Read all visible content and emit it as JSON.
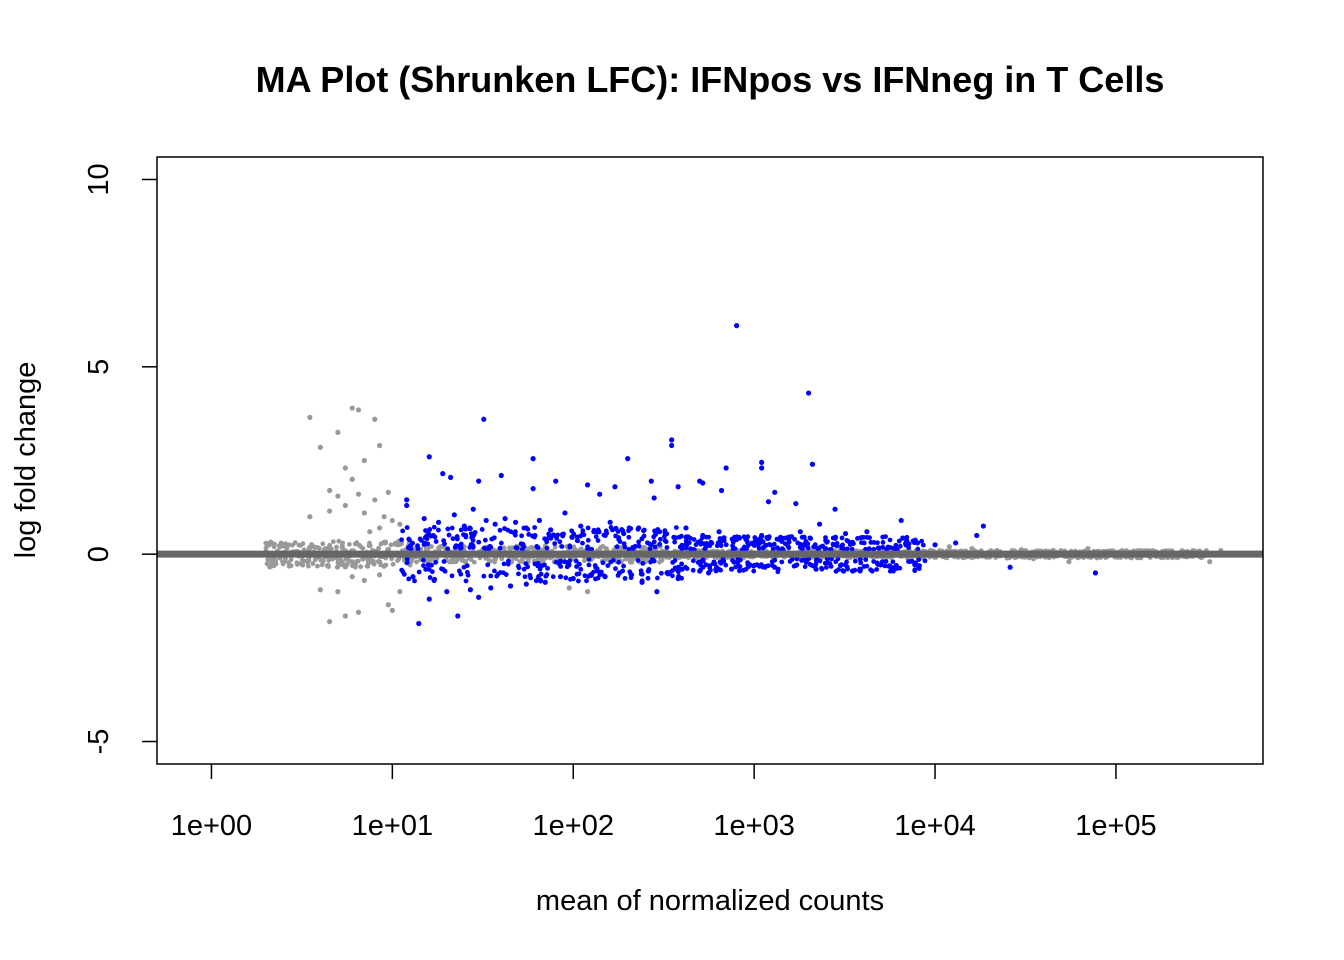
{
  "chart_data": {
    "type": "scatter",
    "title": "MA Plot (Shrunken LFC): IFNpos vs IFNneg in T Cells",
    "xlabel": "mean of normalized counts",
    "ylabel": "log fold change",
    "x_scale": "log10",
    "xlim": [
      0.5,
      650000
    ],
    "ylim": [
      -5.6,
      10.6
    ],
    "x_ticks": [
      1,
      10,
      100,
      1000,
      10000,
      100000
    ],
    "x_tick_labels": [
      "1e+00",
      "1e+01",
      "1e+02",
      "1e+03",
      "1e+04",
      "1e+05"
    ],
    "y_ticks": [
      -5,
      0,
      5,
      10
    ],
    "y_tick_labels": [
      "-5",
      "0",
      "5",
      "10"
    ],
    "reference_line": {
      "y": 0,
      "color": "#666666"
    },
    "grid": false,
    "legend": "none",
    "colors": {
      "significant": "#0000ff",
      "not_significant": "#999999"
    },
    "series": [
      {
        "significant": true,
        "points": [
          [
            800,
            6.1
          ],
          [
            2000,
            4.3
          ],
          [
            32,
            3.6
          ],
          [
            350,
            3.05
          ],
          [
            350,
            2.9
          ],
          [
            1100,
            2.45
          ],
          [
            2100,
            2.4
          ],
          [
            16,
            2.6
          ],
          [
            60,
            2.55
          ],
          [
            200,
            2.55
          ],
          [
            700,
            2.3
          ],
          [
            19,
            2.15
          ],
          [
            40,
            2.1
          ],
          [
            21,
            2.05
          ],
          [
            30,
            1.95
          ],
          [
            80,
            1.95
          ],
          [
            1100,
            2.3
          ],
          [
            500,
            1.95
          ],
          [
            270,
            1.95
          ],
          [
            520,
            1.9
          ],
          [
            120,
            1.85
          ],
          [
            380,
            1.8
          ],
          [
            60,
            1.75
          ],
          [
            170,
            1.8
          ],
          [
            660,
            1.7
          ],
          [
            12,
            1.45
          ],
          [
            12,
            1.3
          ],
          [
            140,
            1.6
          ],
          [
            1300,
            1.65
          ],
          [
            280,
            1.5
          ],
          [
            1200,
            1.4
          ],
          [
            1700,
            1.35
          ],
          [
            2800,
            1.2
          ],
          [
            15,
            0.95
          ],
          [
            18,
            0.85
          ],
          [
            22,
            1.05
          ],
          [
            25,
            0.75
          ],
          [
            28,
            1.2
          ],
          [
            33,
            0.9
          ],
          [
            37,
            0.8
          ],
          [
            42,
            0.95
          ],
          [
            48,
            0.85
          ],
          [
            55,
            0.7
          ],
          [
            65,
            0.9
          ],
          [
            75,
            0.65
          ],
          [
            90,
            1.1
          ],
          [
            110,
            0.75
          ],
          [
            130,
            0.6
          ],
          [
            160,
            0.85
          ],
          [
            190,
            0.55
          ],
          [
            230,
            0.7
          ],
          [
            300,
            0.6
          ],
          [
            360,
            0.45
          ],
          [
            420,
            0.7
          ],
          [
            520,
            0.5
          ],
          [
            640,
            0.6
          ],
          [
            780,
            0.45
          ],
          [
            900,
            0.4
          ],
          [
            1100,
            0.5
          ],
          [
            1400,
            0.45
          ],
          [
            1800,
            0.6
          ],
          [
            2300,
            0.8
          ],
          [
            3200,
            0.55
          ],
          [
            4200,
            0.6
          ],
          [
            6500,
            0.9
          ],
          [
            18500,
            0.75
          ],
          [
            17000,
            0.5
          ],
          [
            13000,
            0.3
          ],
          [
            10000,
            0.25
          ],
          [
            8000,
            0.3
          ],
          [
            14,
            -1.85
          ],
          [
            23,
            -1.65
          ],
          [
            30,
            -1.15
          ],
          [
            16,
            -1.2
          ],
          [
            20,
            -1.0
          ],
          [
            27,
            -0.95
          ],
          [
            35,
            -0.9
          ],
          [
            45,
            -0.85
          ],
          [
            55,
            -0.8
          ],
          [
            70,
            -0.75
          ],
          [
            85,
            -0.6
          ],
          [
            100,
            -0.65
          ],
          [
            125,
            -0.55
          ],
          [
            150,
            -0.6
          ],
          [
            180,
            -0.5
          ],
          [
            210,
            -0.55
          ],
          [
            260,
            -0.45
          ],
          [
            330,
            -0.5
          ],
          [
            400,
            -0.4
          ],
          [
            500,
            -0.45
          ],
          [
            620,
            -0.35
          ],
          [
            750,
            -0.4
          ],
          [
            1000,
            -0.3
          ],
          [
            1300,
            -0.35
          ],
          [
            1700,
            -0.3
          ],
          [
            2200,
            -0.4
          ],
          [
            3000,
            -0.3
          ],
          [
            3500,
            -0.45
          ],
          [
            4800,
            -0.25
          ],
          [
            26000,
            -0.35
          ],
          [
            77000,
            -0.5
          ],
          [
            290,
            -1.0
          ],
          [
            380,
            -0.65
          ],
          [
            13,
            -0.6
          ],
          [
            17,
            -0.7
          ],
          [
            240,
            -0.75
          ],
          [
            560,
            -0.5
          ]
        ]
      },
      {
        "significant": false,
        "points": [
          [
            3.5,
            3.65
          ],
          [
            6,
            3.9
          ],
          [
            6.5,
            3.85
          ],
          [
            8,
            3.6
          ],
          [
            5,
            3.25
          ],
          [
            4,
            2.85
          ],
          [
            8.5,
            2.9
          ],
          [
            7,
            2.5
          ],
          [
            5.5,
            2.3
          ],
          [
            6,
            2.0
          ],
          [
            4.5,
            1.7
          ],
          [
            5,
            1.55
          ],
          [
            6.5,
            1.6
          ],
          [
            3.5,
            1.0
          ],
          [
            4.5,
            1.15
          ],
          [
            5.5,
            1.3
          ],
          [
            7,
            1.1
          ],
          [
            8,
            1.45
          ],
          [
            9,
            1.0
          ],
          [
            9.5,
            1.65
          ],
          [
            10,
            0.9
          ],
          [
            11,
            0.8
          ],
          [
            7.5,
            0.6
          ],
          [
            8.5,
            0.7
          ],
          [
            4.5,
            -1.8
          ],
          [
            5.5,
            -1.65
          ],
          [
            4,
            -0.95
          ],
          [
            5,
            -1.0
          ],
          [
            6,
            -0.6
          ],
          [
            7,
            -0.7
          ],
          [
            8.5,
            -0.55
          ],
          [
            9.5,
            -1.35
          ],
          [
            10,
            -1.5
          ],
          [
            11,
            -1.0
          ],
          [
            6.5,
            -1.55
          ],
          [
            120,
            -1.0
          ],
          [
            95,
            -0.9
          ],
          [
            12000,
            0.2
          ],
          [
            16000,
            0.15
          ],
          [
            22000,
            0.1
          ],
          [
            30000,
            0.12
          ],
          [
            45000,
            0.1
          ],
          [
            55000,
            -0.2
          ],
          [
            70000,
            0.15
          ],
          [
            95000,
            0.05
          ],
          [
            120000,
            0.05
          ],
          [
            330000,
            -0.2
          ],
          [
            380000,
            0.1
          ],
          [
            25000,
            -0.1
          ],
          [
            35000,
            -0.12
          ],
          [
            60000,
            -0.05
          ]
        ]
      }
    ]
  }
}
